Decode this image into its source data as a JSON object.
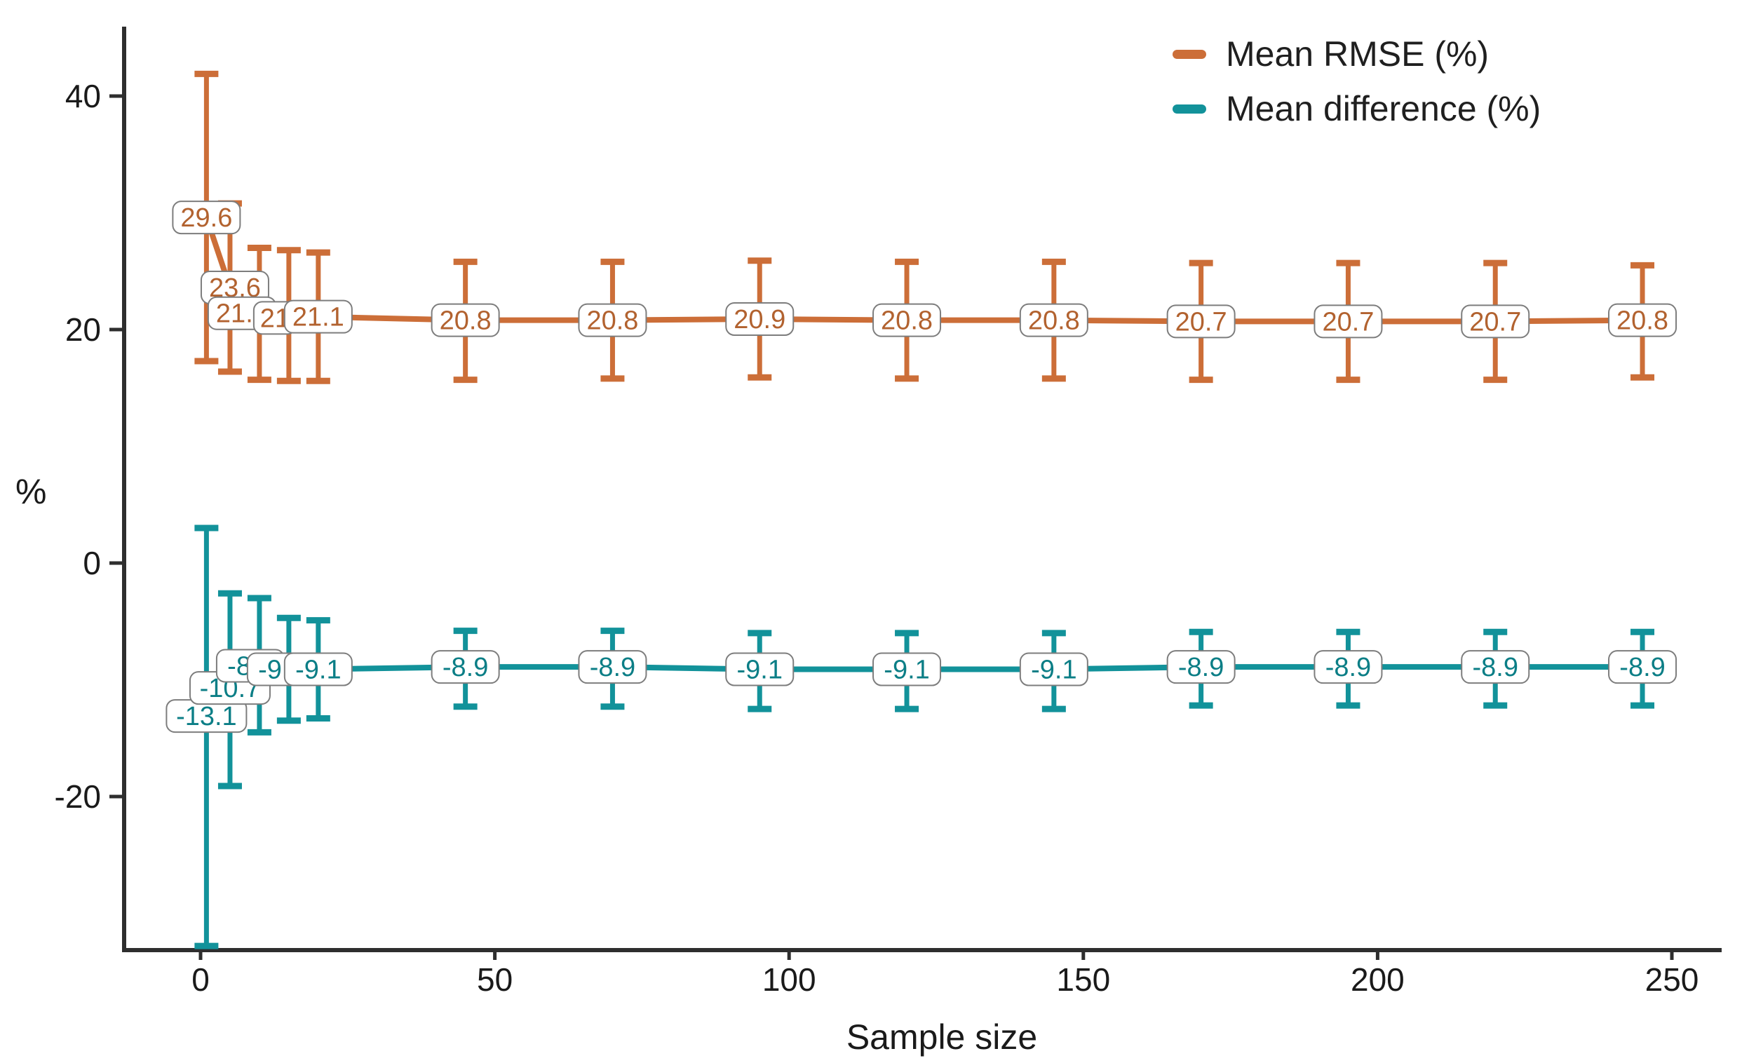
{
  "figure": {
    "y_axis_title": "%",
    "x_axis_title": "Sample size",
    "y_ticks": [
      40,
      20,
      0,
      -20
    ],
    "x_ticks": [
      0,
      50,
      100,
      150,
      200,
      250
    ]
  },
  "legend": [
    {
      "label": "Mean RMSE (%)",
      "color": "#CC6E38"
    },
    {
      "label": "Mean difference (%)",
      "color": "#12929A"
    }
  ],
  "chart_data": {
    "type": "line",
    "title": "",
    "xlabel": "Sample size",
    "ylabel": "%",
    "xlim": [
      -13,
      258
    ],
    "ylim": [
      -33.2,
      46
    ],
    "grid": false,
    "legend_position": "top-right",
    "marker_style": "value-label-box-with-error-bars",
    "x": [
      1,
      5,
      10,
      15,
      20,
      45,
      70,
      95,
      120,
      145,
      170,
      195,
      220,
      245
    ],
    "series": [
      {
        "name": "Mean RMSE (%)",
        "color": "#CC6E38",
        "label_text_color": "#B2622F",
        "means": [
          29.6,
          23.6,
          21.4,
          21,
          21.1,
          20.8,
          20.8,
          20.9,
          20.8,
          20.8,
          20.7,
          20.7,
          20.7,
          20.8
        ],
        "labels": [
          "29.6",
          "23.6",
          "21.4",
          "21",
          "21.1",
          "20.8",
          "20.8",
          "20.9",
          "20.8",
          "20.8",
          "20.7",
          "20.7",
          "20.7",
          "20.8"
        ],
        "err_low": [
          17.3,
          16.4,
          15.7,
          15.6,
          15.6,
          15.7,
          15.8,
          15.9,
          15.8,
          15.8,
          15.7,
          15.7,
          15.7,
          15.9
        ],
        "err_high": [
          41.9,
          30.8,
          27.0,
          26.8,
          26.6,
          25.8,
          25.8,
          25.9,
          25.8,
          25.8,
          25.7,
          25.7,
          25.7,
          25.5
        ],
        "label_dx": [
          0,
          7,
          -25,
          -20,
          0,
          0,
          0,
          0,
          0,
          0,
          0,
          0,
          0,
          0
        ]
      },
      {
        "name": "Mean difference (%)",
        "color": "#12929A",
        "label_text_color": "#0B7E86",
        "means": [
          -13.1,
          -10.7,
          -8.8,
          -9.1,
          -9.1,
          -8.9,
          -8.9,
          -9.1,
          -9.1,
          -9.1,
          -8.9,
          -8.9,
          -8.9,
          -8.9
        ],
        "labels": [
          "-13.1",
          "-10.7",
          "-8.8",
          "-9.1",
          "-9.1",
          "-8.9",
          "-8.9",
          "-9.1",
          "-9.1",
          "-9.1",
          "-8.9",
          "-8.9",
          "-8.9",
          "-8.9"
        ],
        "err_low": [
          -32.8,
          -19.1,
          -14.5,
          -13.5,
          -13.3,
          -12.3,
          -12.3,
          -12.5,
          -12.5,
          -12.5,
          -12.2,
          -12.2,
          -12.2,
          -12.2
        ],
        "err_high": [
          3.0,
          -2.6,
          -3.0,
          -4.7,
          -4.9,
          -5.8,
          -5.8,
          -6.0,
          -6.0,
          -6.0,
          -5.9,
          -5.9,
          -5.9,
          -5.9
        ],
        "label_dx": [
          0,
          0,
          -13,
          -11,
          0,
          0,
          0,
          0,
          0,
          0,
          0,
          0,
          0,
          0
        ]
      }
    ]
  }
}
